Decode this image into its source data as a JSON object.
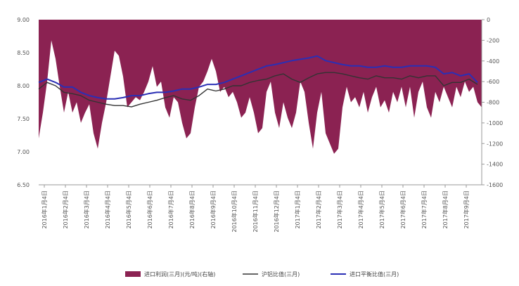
{
  "chart_data": {
    "type": "area",
    "title": "",
    "xlabel": "",
    "ylabel": "",
    "y_left": {
      "ticks": [
        "6.50",
        "7.00",
        "7.50",
        "8.00",
        "8.50",
        "9.00"
      ],
      "min": 6.5,
      "max": 9.0
    },
    "y_right": {
      "ticks": [
        "-1600",
        "-1400",
        "-1200",
        "-1000",
        "-800",
        "-600",
        "-400",
        "-200",
        "0"
      ],
      "min": -1600,
      "max": 0
    },
    "grid": false,
    "legend_position": "bottom",
    "x_labels": [
      "2016年1月4日",
      "2016年2月4日",
      "2016年3月4日",
      "2016年4月4日",
      "2016年5月4日",
      "2016年6月4日",
      "2016年7月4日",
      "2016年8月4日",
      "2016年9月4日",
      "2016年10月4日",
      "2016年11月4日",
      "2016年12月4日",
      "2017年1月4日",
      "2017年2月4日",
      "2017年3月4日",
      "2017年4月4日",
      "2017年5月4日",
      "2017年6月4日",
      "2017年7月4日",
      "2017年8月4日",
      "2017年9月4日"
    ],
    "colors": {
      "profit": "#8b2252",
      "shfe": "#333333",
      "import": "#2a2fb5",
      "axis": "#999999"
    },
    "series": [
      {
        "name": "进口利润(三月)(元/吨)(右轴)",
        "axis": "right",
        "kind": "area",
        "points": [
          [
            0.0,
            -1150
          ],
          [
            0.5,
            -900
          ],
          [
            1.0,
            -600
          ],
          [
            1.5,
            -200
          ],
          [
            2.0,
            -380
          ],
          [
            2.5,
            -650
          ],
          [
            3.0,
            -900
          ],
          [
            3.5,
            -700
          ],
          [
            4.0,
            -900
          ],
          [
            4.5,
            -800
          ],
          [
            5.0,
            -1000
          ],
          [
            5.5,
            -900
          ],
          [
            6.0,
            -820
          ],
          [
            6.5,
            -1100
          ],
          [
            7.0,
            -1250
          ],
          [
            7.5,
            -1000
          ],
          [
            8.0,
            -800
          ],
          [
            8.5,
            -550
          ],
          [
            9.0,
            -300
          ],
          [
            9.5,
            -350
          ],
          [
            10.0,
            -550
          ],
          [
            10.5,
            -850
          ],
          [
            11.0,
            -800
          ],
          [
            11.5,
            -750
          ],
          [
            12.0,
            -780
          ],
          [
            12.5,
            -700
          ],
          [
            13.0,
            -600
          ],
          [
            13.5,
            -450
          ],
          [
            14.0,
            -650
          ],
          [
            14.5,
            -600
          ],
          [
            15.0,
            -850
          ],
          [
            15.5,
            -950
          ],
          [
            16.0,
            -750
          ],
          [
            16.5,
            -800
          ],
          [
            17.0,
            -1000
          ],
          [
            17.5,
            -1150
          ],
          [
            18.0,
            -1100
          ],
          [
            18.5,
            -850
          ],
          [
            19.0,
            -650
          ],
          [
            19.5,
            -600
          ],
          [
            20.0,
            -500
          ],
          [
            20.5,
            -380
          ],
          [
            21.0,
            -500
          ],
          [
            21.5,
            -700
          ],
          [
            22.0,
            -650
          ],
          [
            22.5,
            -750
          ],
          [
            23.0,
            -700
          ],
          [
            23.5,
            -800
          ],
          [
            24.0,
            -950
          ],
          [
            24.5,
            -900
          ],
          [
            25.0,
            -750
          ],
          [
            25.5,
            -900
          ],
          [
            26.0,
            -1100
          ],
          [
            26.5,
            -1050
          ],
          [
            27.0,
            -700
          ],
          [
            27.5,
            -600
          ],
          [
            28.0,
            -900
          ],
          [
            28.5,
            -1050
          ],
          [
            29.0,
            -800
          ],
          [
            29.5,
            -950
          ],
          [
            30.0,
            -1050
          ],
          [
            30.5,
            -900
          ],
          [
            31.0,
            -600
          ],
          [
            31.5,
            -700
          ],
          [
            32.0,
            -1000
          ],
          [
            32.5,
            -1250
          ],
          [
            33.0,
            -900
          ],
          [
            33.5,
            -700
          ],
          [
            34.0,
            -1100
          ],
          [
            34.5,
            -1200
          ],
          [
            35.0,
            -1300
          ],
          [
            35.5,
            -1250
          ],
          [
            36.0,
            -850
          ],
          [
            36.5,
            -650
          ],
          [
            37.0,
            -800
          ],
          [
            37.5,
            -750
          ],
          [
            38.0,
            -850
          ],
          [
            38.5,
            -700
          ],
          [
            39.0,
            -900
          ],
          [
            39.5,
            -750
          ],
          [
            40.0,
            -650
          ],
          [
            40.5,
            -850
          ],
          [
            41.0,
            -780
          ],
          [
            41.5,
            -900
          ],
          [
            42.0,
            -700
          ],
          [
            42.5,
            -800
          ],
          [
            43.0,
            -650
          ],
          [
            43.5,
            -850
          ],
          [
            44.0,
            -650
          ],
          [
            44.5,
            -950
          ],
          [
            45.0,
            -700
          ],
          [
            45.5,
            -600
          ],
          [
            46.0,
            -850
          ],
          [
            46.5,
            -950
          ],
          [
            47.0,
            -700
          ],
          [
            47.5,
            -800
          ],
          [
            48.0,
            -650
          ],
          [
            48.5,
            -750
          ],
          [
            49.0,
            -850
          ],
          [
            49.5,
            -650
          ],
          [
            50.0,
            -750
          ],
          [
            50.5,
            -600
          ],
          [
            51.0,
            -700
          ],
          [
            51.5,
            -650
          ],
          [
            52.0,
            -800
          ],
          [
            52.5,
            -850
          ]
        ]
      },
      {
        "name": "沪铝比值(三月)",
        "axis": "left",
        "kind": "line",
        "points": [
          [
            0,
            7.95
          ],
          [
            1,
            8.05
          ],
          [
            2,
            8.0
          ],
          [
            3,
            7.9
          ],
          [
            4,
            7.88
          ],
          [
            5,
            7.85
          ],
          [
            6,
            7.78
          ],
          [
            7,
            7.75
          ],
          [
            8,
            7.72
          ],
          [
            9,
            7.7
          ],
          [
            10,
            7.7
          ],
          [
            11,
            7.68
          ],
          [
            12,
            7.72
          ],
          [
            13,
            7.75
          ],
          [
            14,
            7.78
          ],
          [
            15,
            7.82
          ],
          [
            16,
            7.85
          ],
          [
            17,
            7.8
          ],
          [
            18,
            7.78
          ],
          [
            19,
            7.85
          ],
          [
            20,
            7.95
          ],
          [
            21,
            7.92
          ],
          [
            22,
            7.95
          ],
          [
            23,
            8.0
          ],
          [
            24,
            8.0
          ],
          [
            25,
            8.05
          ],
          [
            26,
            8.08
          ],
          [
            27,
            8.1
          ],
          [
            28,
            8.15
          ],
          [
            29,
            8.18
          ],
          [
            30,
            8.1
          ],
          [
            31,
            8.05
          ],
          [
            32,
            8.12
          ],
          [
            33,
            8.18
          ],
          [
            34,
            8.2
          ],
          [
            35,
            8.2
          ],
          [
            36,
            8.18
          ],
          [
            37,
            8.15
          ],
          [
            38,
            8.12
          ],
          [
            39,
            8.1
          ],
          [
            40,
            8.15
          ],
          [
            41,
            8.12
          ],
          [
            42,
            8.12
          ],
          [
            43,
            8.1
          ],
          [
            44,
            8.15
          ],
          [
            45,
            8.12
          ],
          [
            46,
            8.15
          ],
          [
            47,
            8.15
          ],
          [
            48,
            8.0
          ],
          [
            49,
            8.05
          ],
          [
            50,
            8.05
          ],
          [
            51,
            8.1
          ],
          [
            52,
            8.02
          ]
        ]
      },
      {
        "name": "进口平衡比值(三月)",
        "axis": "left",
        "kind": "line",
        "points": [
          [
            0,
            8.05
          ],
          [
            1,
            8.1
          ],
          [
            2,
            8.05
          ],
          [
            3,
            7.98
          ],
          [
            4,
            7.98
          ],
          [
            5,
            7.9
          ],
          [
            6,
            7.85
          ],
          [
            7,
            7.82
          ],
          [
            8,
            7.8
          ],
          [
            9,
            7.8
          ],
          [
            10,
            7.82
          ],
          [
            11,
            7.85
          ],
          [
            12,
            7.85
          ],
          [
            13,
            7.88
          ],
          [
            14,
            7.9
          ],
          [
            15,
            7.9
          ],
          [
            16,
            7.92
          ],
          [
            17,
            7.95
          ],
          [
            18,
            7.95
          ],
          [
            19,
            7.98
          ],
          [
            20,
            8.02
          ],
          [
            21,
            8.02
          ],
          [
            22,
            8.05
          ],
          [
            23,
            8.1
          ],
          [
            24,
            8.15
          ],
          [
            25,
            8.2
          ],
          [
            26,
            8.25
          ],
          [
            27,
            8.3
          ],
          [
            28,
            8.32
          ],
          [
            29,
            8.35
          ],
          [
            30,
            8.38
          ],
          [
            31,
            8.4
          ],
          [
            32,
            8.42
          ],
          [
            33,
            8.45
          ],
          [
            34,
            8.38
          ],
          [
            35,
            8.35
          ],
          [
            36,
            8.32
          ],
          [
            37,
            8.3
          ],
          [
            38,
            8.3
          ],
          [
            39,
            8.28
          ],
          [
            40,
            8.28
          ],
          [
            41,
            8.3
          ],
          [
            42,
            8.28
          ],
          [
            43,
            8.28
          ],
          [
            44,
            8.3
          ],
          [
            45,
            8.3
          ],
          [
            46,
            8.3
          ],
          [
            47,
            8.28
          ],
          [
            48,
            8.18
          ],
          [
            49,
            8.2
          ],
          [
            50,
            8.15
          ],
          [
            51,
            8.18
          ],
          [
            52,
            8.05
          ]
        ]
      }
    ]
  },
  "legend": [
    {
      "label": "进口利润(三月)(元/吨)(右轴)",
      "color": "#8b2252",
      "kind": "box"
    },
    {
      "label": "沪铝比值(三月)",
      "color": "#333333",
      "kind": "line"
    },
    {
      "label": "进口平衡比值(三月)",
      "color": "#2a2fb5",
      "kind": "line"
    }
  ]
}
